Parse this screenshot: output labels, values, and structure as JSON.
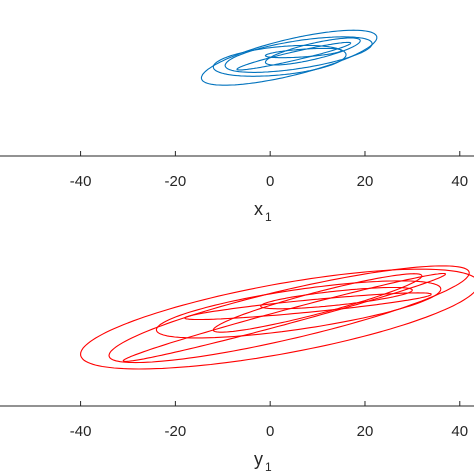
{
  "chart_data": [
    {
      "type": "line",
      "xlabel": "x",
      "xlabel_sub": "1",
      "xlim": [
        -57,
        43
      ],
      "ylim": [
        -6,
        4
      ],
      "x_ticks": [
        "-40",
        "-20",
        "0",
        "20",
        "40"
      ],
      "grid": false,
      "series": [
        {
          "color": "#0072BD",
          "loops": [
            {
              "cx": 6,
              "cy": 0.5,
              "rx": 15.5,
              "ry": 0.9,
              "tilt": 4.5,
              "shift": 0
            },
            {
              "cx": 4,
              "cy": 0.3,
              "rx": 18.5,
              "ry": 1.25,
              "tilt": 5.0,
              "shift": 0.3
            },
            {
              "cx": 2,
              "cy": 0.1,
              "rx": 14,
              "ry": 0.95,
              "tilt": 4.8,
              "shift": -0.3
            },
            {
              "cx": 9,
              "cy": 0.7,
              "rx": 10,
              "ry": 0.6,
              "tilt": 4.0,
              "shift": 0.5
            },
            {
              "cx": 5,
              "cy": 0.4,
              "rx": 12,
              "ry": 0.4,
              "tilt": 4.6,
              "shift": 0.8
            },
            {
              "cx": 7,
              "cy": 0.6,
              "rx": 8,
              "ry": 0.3,
              "tilt": 4.2,
              "shift": -0.6
            }
          ]
        }
      ]
    },
    {
      "type": "line",
      "xlabel": "y",
      "xlabel_sub": "1",
      "xlim": [
        -57,
        43
      ],
      "ylim": [
        -6,
        4
      ],
      "x_ticks": [
        "-40",
        "-20",
        "0",
        "20",
        "40"
      ],
      "grid": false,
      "series": [
        {
          "color": "#FF0000",
          "loops": [
            {
              "cx": 2,
              "cy": -0.6,
              "rx": 42,
              "ry": 2.2,
              "tilt": 5.2,
              "shift": 0
            },
            {
              "cx": 4,
              "cy": -0.3,
              "rx": 38,
              "ry": 1.7,
              "tilt": 5.0,
              "shift": 0.4
            },
            {
              "cx": 6,
              "cy": 0.0,
              "rx": 30,
              "ry": 1.3,
              "tilt": 5.5,
              "shift": -0.3
            },
            {
              "cx": 10,
              "cy": 0.4,
              "rx": 22,
              "ry": 0.9,
              "tilt": 5.0,
              "shift": 0.7
            },
            {
              "cx": 14,
              "cy": 0.7,
              "rx": 16,
              "ry": 0.5,
              "tilt": 4.6,
              "shift": -0.5
            },
            {
              "cx": 3,
              "cy": -0.5,
              "rx": 34,
              "ry": 1.0,
              "tilt": 5.3,
              "shift": 1.1
            },
            {
              "cx": 8,
              "cy": 0.2,
              "rx": 26,
              "ry": 0.7,
              "tilt": 5.1,
              "shift": -1.0
            }
          ]
        }
      ]
    }
  ]
}
